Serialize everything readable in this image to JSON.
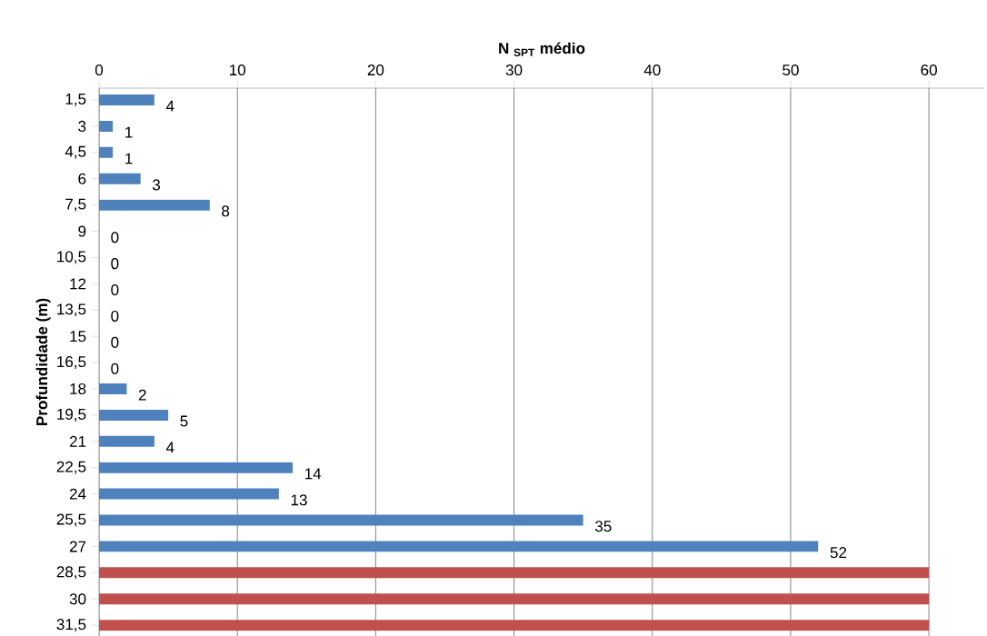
{
  "chart_data": {
    "type": "bar",
    "orientation": "horizontal",
    "xlabel": "N $_{SPT}$ médio",
    "ylabel": "Profundidade (m)",
    "categories": [
      "1,5",
      "3",
      "4,5",
      "6",
      "7,5",
      "9",
      "10,5",
      "12",
      "13,5",
      "15",
      "16,5",
      "18",
      "19,5",
      "21",
      "22,5",
      "24",
      "25,5",
      "27",
      "28,5",
      "30",
      "31,5"
    ],
    "values": [
      4,
      1,
      1,
      3,
      8,
      0,
      0,
      0,
      0,
      0,
      0,
      2,
      5,
      4,
      14,
      13,
      35,
      52,
      60,
      60,
      60
    ],
    "value_labels": [
      "4",
      "1",
      "1",
      "3",
      "8",
      "0",
      "0",
      "0",
      "0",
      "0",
      "0",
      "2",
      "5",
      "4",
      "14",
      "13",
      "35",
      "52",
      null,
      null,
      null
    ],
    "colors": [
      "#4f81bd",
      "#4f81bd",
      "#4f81bd",
      "#4f81bd",
      "#4f81bd",
      "#4f81bd",
      "#4f81bd",
      "#4f81bd",
      "#4f81bd",
      "#4f81bd",
      "#4f81bd",
      "#4f81bd",
      "#4f81bd",
      "#4f81bd",
      "#4f81bd",
      "#4f81bd",
      "#4f81bd",
      "#4f81bd",
      "#c0504d",
      "#c0504d",
      "#c0504d"
    ],
    "xlim": [
      0,
      64
    ],
    "xticks": [
      0,
      10,
      20,
      30,
      40,
      50,
      60
    ],
    "grid": "x"
  }
}
